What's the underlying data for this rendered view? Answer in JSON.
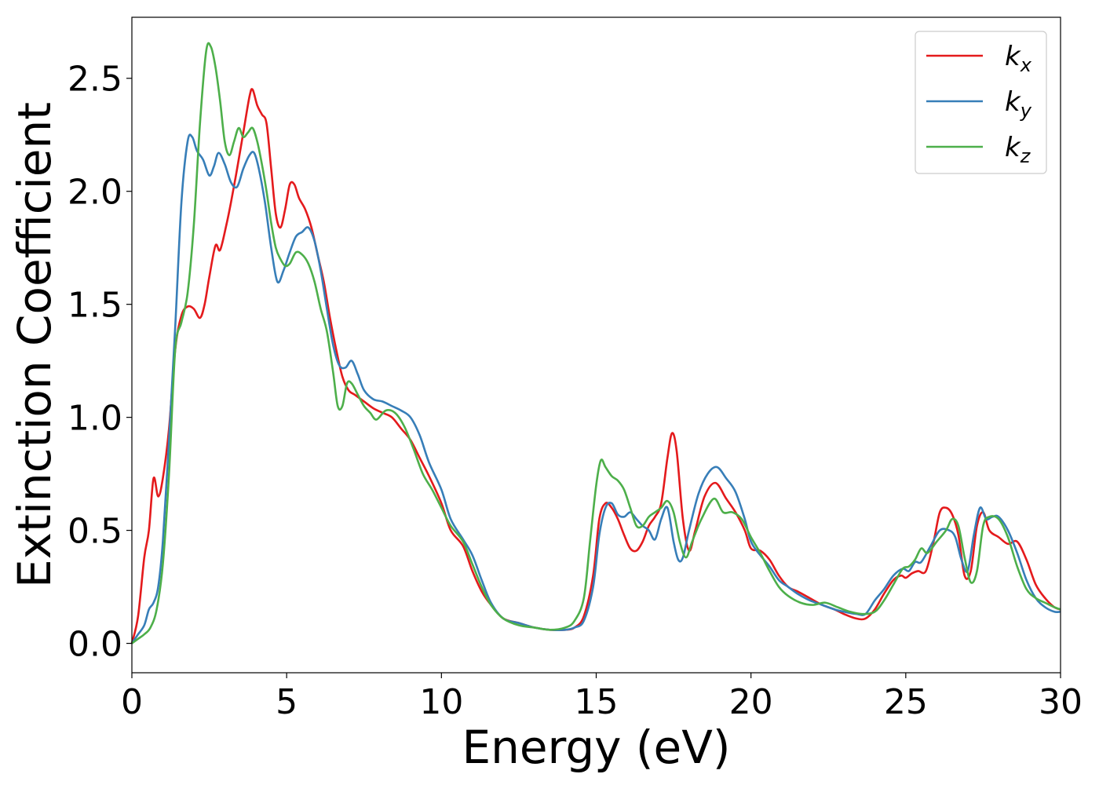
{
  "chart_data": {
    "type": "line",
    "title": "",
    "xlabel": "Energy (eV)",
    "ylabel": "Extinction Coefficient",
    "xlim": [
      0,
      30
    ],
    "ylim": [
      -0.13,
      2.77
    ],
    "xticks": [
      0,
      5,
      10,
      15,
      20,
      25,
      30
    ],
    "xtick_labels": [
      "0",
      "5",
      "10",
      "15",
      "20",
      "25",
      "30"
    ],
    "yticks": [
      0.0,
      0.5,
      1.0,
      1.5,
      2.0,
      2.5
    ],
    "ytick_labels": [
      "0.0",
      "0.5",
      "1.0",
      "1.5",
      "2.0",
      "2.5"
    ],
    "grid": false,
    "legend_position": "top-right",
    "series": [
      {
        "name": "k_x",
        "legend_main": "k",
        "legend_sub": "x",
        "color": "#e41a1c",
        "x": [
          0,
          0.2,
          0.4,
          0.55,
          0.7,
          0.85,
          1.0,
          1.2,
          1.4,
          1.6,
          1.8,
          2.0,
          2.2,
          2.35,
          2.5,
          2.7,
          2.85,
          3.05,
          3.2,
          3.4,
          3.6,
          3.8,
          3.9,
          4.05,
          4.2,
          4.35,
          4.5,
          4.65,
          4.8,
          4.95,
          5.1,
          5.25,
          5.4,
          5.6,
          5.8,
          6.0,
          6.2,
          6.4,
          6.6,
          6.8,
          7.0,
          7.2,
          7.5,
          7.8,
          8.1,
          8.4,
          8.7,
          9.0,
          9.3,
          9.6,
          10.0,
          10.3,
          10.7,
          11.0,
          11.3,
          11.6,
          12.0,
          12.5,
          13.0,
          13.5,
          14.0,
          14.3,
          14.6,
          14.9,
          15.1,
          15.3,
          15.5,
          15.7,
          15.9,
          16.1,
          16.3,
          16.5,
          16.7,
          16.9,
          17.1,
          17.3,
          17.45,
          17.6,
          17.8,
          18.0,
          18.2,
          18.5,
          18.85,
          19.2,
          19.5,
          19.8,
          20.0,
          20.3,
          20.6,
          20.9,
          21.2,
          21.5,
          21.9,
          22.3,
          22.7,
          23.0,
          23.4,
          23.7,
          24.0,
          24.3,
          24.6,
          24.85,
          25.0,
          25.2,
          25.4,
          25.65,
          25.9,
          26.1,
          26.3,
          26.5,
          26.7,
          26.9,
          27.1,
          27.3,
          27.5,
          27.7,
          28.0,
          28.3,
          28.6,
          28.9,
          29.2,
          29.5,
          29.8,
          30.0
        ],
        "values": [
          0.0,
          0.12,
          0.38,
          0.5,
          0.73,
          0.65,
          0.73,
          0.95,
          1.3,
          1.45,
          1.49,
          1.48,
          1.44,
          1.5,
          1.62,
          1.76,
          1.74,
          1.85,
          1.95,
          2.1,
          2.26,
          2.42,
          2.45,
          2.38,
          2.34,
          2.3,
          2.1,
          1.9,
          1.84,
          1.92,
          2.03,
          2.03,
          1.97,
          1.92,
          1.84,
          1.72,
          1.6,
          1.44,
          1.3,
          1.18,
          1.12,
          1.1,
          1.07,
          1.04,
          1.02,
          1.0,
          0.95,
          0.9,
          0.82,
          0.74,
          0.62,
          0.5,
          0.43,
          0.32,
          0.23,
          0.17,
          0.11,
          0.09,
          0.07,
          0.06,
          0.06,
          0.07,
          0.12,
          0.3,
          0.55,
          0.62,
          0.6,
          0.55,
          0.48,
          0.42,
          0.41,
          0.45,
          0.52,
          0.56,
          0.62,
          0.82,
          0.93,
          0.85,
          0.55,
          0.41,
          0.5,
          0.65,
          0.71,
          0.64,
          0.58,
          0.5,
          0.42,
          0.41,
          0.37,
          0.3,
          0.25,
          0.23,
          0.2,
          0.17,
          0.15,
          0.13,
          0.11,
          0.11,
          0.15,
          0.22,
          0.28,
          0.3,
          0.29,
          0.31,
          0.32,
          0.32,
          0.45,
          0.58,
          0.6,
          0.57,
          0.48,
          0.3,
          0.32,
          0.52,
          0.58,
          0.5,
          0.47,
          0.44,
          0.45,
          0.37,
          0.26,
          0.2,
          0.16,
          0.15
        ]
      },
      {
        "name": "k_y",
        "legend_main": "k",
        "legend_sub": "y",
        "color": "#377eb8",
        "x": [
          0,
          0.2,
          0.4,
          0.55,
          0.7,
          0.85,
          1.0,
          1.2,
          1.4,
          1.6,
          1.8,
          1.95,
          2.1,
          2.3,
          2.5,
          2.65,
          2.8,
          3.0,
          3.2,
          3.4,
          3.6,
          3.8,
          3.95,
          4.1,
          4.3,
          4.5,
          4.7,
          4.9,
          5.1,
          5.3,
          5.5,
          5.7,
          5.9,
          6.1,
          6.3,
          6.5,
          6.7,
          6.9,
          7.1,
          7.3,
          7.5,
          7.8,
          8.1,
          8.4,
          8.7,
          9.0,
          9.3,
          9.6,
          10.0,
          10.3,
          10.7,
          11.0,
          11.3,
          11.6,
          12.0,
          12.5,
          13.0,
          13.5,
          14.0,
          14.3,
          14.6,
          14.9,
          15.1,
          15.3,
          15.5,
          15.7,
          15.9,
          16.1,
          16.3,
          16.5,
          16.7,
          16.9,
          17.1,
          17.3,
          17.5,
          17.65,
          17.8,
          18.0,
          18.3,
          18.6,
          18.9,
          19.2,
          19.5,
          19.8,
          20.0,
          20.3,
          20.6,
          20.9,
          21.2,
          21.5,
          21.9,
          22.3,
          22.7,
          23.0,
          23.4,
          23.7,
          24.0,
          24.3,
          24.6,
          24.9,
          25.1,
          25.3,
          25.5,
          25.8,
          26.1,
          26.4,
          26.6,
          26.8,
          27.0,
          27.2,
          27.4,
          27.6,
          27.8,
          28.0,
          28.3,
          28.6,
          28.9,
          29.2,
          29.5,
          29.8,
          30.0
        ],
        "values": [
          0.0,
          0.04,
          0.08,
          0.15,
          0.18,
          0.25,
          0.45,
          0.9,
          1.4,
          1.95,
          2.22,
          2.24,
          2.18,
          2.14,
          2.07,
          2.11,
          2.17,
          2.12,
          2.04,
          2.02,
          2.1,
          2.16,
          2.17,
          2.1,
          1.95,
          1.75,
          1.6,
          1.65,
          1.73,
          1.8,
          1.82,
          1.84,
          1.78,
          1.65,
          1.48,
          1.32,
          1.23,
          1.22,
          1.25,
          1.19,
          1.12,
          1.08,
          1.07,
          1.05,
          1.03,
          1.0,
          0.92,
          0.8,
          0.68,
          0.55,
          0.46,
          0.39,
          0.28,
          0.18,
          0.11,
          0.09,
          0.07,
          0.06,
          0.06,
          0.07,
          0.1,
          0.25,
          0.48,
          0.6,
          0.62,
          0.57,
          0.56,
          0.58,
          0.55,
          0.52,
          0.5,
          0.46,
          0.55,
          0.6,
          0.45,
          0.37,
          0.38,
          0.5,
          0.66,
          0.75,
          0.78,
          0.73,
          0.67,
          0.55,
          0.45,
          0.39,
          0.34,
          0.28,
          0.25,
          0.22,
          0.19,
          0.17,
          0.15,
          0.14,
          0.13,
          0.13,
          0.19,
          0.24,
          0.3,
          0.33,
          0.32,
          0.36,
          0.36,
          0.43,
          0.5,
          0.5,
          0.47,
          0.37,
          0.32,
          0.48,
          0.6,
          0.55,
          0.56,
          0.56,
          0.5,
          0.4,
          0.28,
          0.2,
          0.16,
          0.14,
          0.14
        ]
      },
      {
        "name": "k_z",
        "legend_main": "k",
        "legend_sub": "z",
        "color": "#4daf4a",
        "x": [
          0,
          0.2,
          0.4,
          0.6,
          0.8,
          1.0,
          1.2,
          1.4,
          1.6,
          1.8,
          2.0,
          2.2,
          2.4,
          2.55,
          2.7,
          2.85,
          3.0,
          3.15,
          3.3,
          3.45,
          3.6,
          3.75,
          3.9,
          4.05,
          4.2,
          4.35,
          4.5,
          4.65,
          4.8,
          4.95,
          5.1,
          5.3,
          5.5,
          5.7,
          5.9,
          6.1,
          6.3,
          6.5,
          6.65,
          6.8,
          6.95,
          7.1,
          7.3,
          7.5,
          7.7,
          7.9,
          8.2,
          8.5,
          8.8,
          9.1,
          9.4,
          9.7,
          10.0,
          10.3,
          10.7,
          11.0,
          11.3,
          11.6,
          12.0,
          12.5,
          13.0,
          13.5,
          14.0,
          14.3,
          14.6,
          14.8,
          15.0,
          15.15,
          15.3,
          15.5,
          15.7,
          15.9,
          16.1,
          16.3,
          16.5,
          16.7,
          16.9,
          17.1,
          17.3,
          17.5,
          17.7,
          17.9,
          18.1,
          18.4,
          18.8,
          19.1,
          19.4,
          19.7,
          20.0,
          20.3,
          20.6,
          20.9,
          21.2,
          21.6,
          22.0,
          22.4,
          22.8,
          23.2,
          23.6,
          24.0,
          24.3,
          24.6,
          24.9,
          25.1,
          25.3,
          25.5,
          25.7,
          26.0,
          26.3,
          26.5,
          26.7,
          26.9,
          27.1,
          27.3,
          27.5,
          27.7,
          28.0,
          28.3,
          28.6,
          28.9,
          29.2,
          29.5,
          29.8,
          30.0
        ],
        "values": [
          0.0,
          0.02,
          0.04,
          0.07,
          0.15,
          0.35,
          0.75,
          1.3,
          1.42,
          1.55,
          1.85,
          2.3,
          2.62,
          2.64,
          2.55,
          2.4,
          2.22,
          2.16,
          2.22,
          2.28,
          2.24,
          2.26,
          2.28,
          2.22,
          2.12,
          2.0,
          1.86,
          1.75,
          1.7,
          1.67,
          1.68,
          1.73,
          1.72,
          1.68,
          1.6,
          1.48,
          1.38,
          1.2,
          1.05,
          1.05,
          1.15,
          1.15,
          1.1,
          1.05,
          1.02,
          0.99,
          1.03,
          1.02,
          0.96,
          0.86,
          0.75,
          0.68,
          0.6,
          0.52,
          0.45,
          0.35,
          0.25,
          0.17,
          0.11,
          0.08,
          0.07,
          0.06,
          0.07,
          0.1,
          0.2,
          0.45,
          0.7,
          0.81,
          0.78,
          0.74,
          0.72,
          0.68,
          0.6,
          0.52,
          0.52,
          0.56,
          0.58,
          0.6,
          0.63,
          0.58,
          0.45,
          0.38,
          0.45,
          0.55,
          0.64,
          0.58,
          0.58,
          0.55,
          0.47,
          0.4,
          0.32,
          0.25,
          0.21,
          0.18,
          0.17,
          0.18,
          0.16,
          0.14,
          0.13,
          0.14,
          0.19,
          0.26,
          0.33,
          0.34,
          0.37,
          0.42,
          0.4,
          0.45,
          0.5,
          0.55,
          0.52,
          0.38,
          0.27,
          0.32,
          0.52,
          0.56,
          0.55,
          0.47,
          0.34,
          0.24,
          0.2,
          0.18,
          0.16,
          0.15
        ]
      }
    ]
  }
}
